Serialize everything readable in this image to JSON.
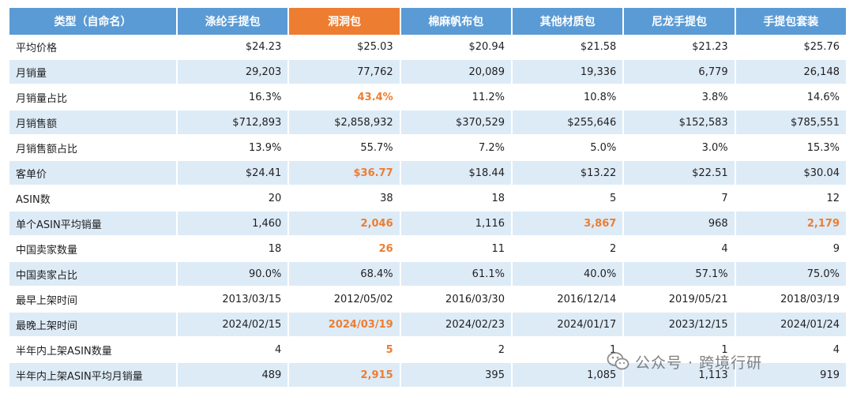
{
  "table": {
    "headers": [
      "类型（自命名）",
      "涤纶手提包",
      "洞洞包",
      "棉麻帆布包",
      "其他材质包",
      "尼龙手提包",
      "手提包套装"
    ],
    "highlight_header_index": 2,
    "accent_color": "#ed7d31",
    "header_color": "#5b9bd5",
    "stripe_color": "#ddebf7",
    "rows": [
      {
        "label": "平均价格",
        "cells": [
          {
            "v": "$24.23"
          },
          {
            "v": "$25.03"
          },
          {
            "v": "$20.94"
          },
          {
            "v": "$21.58"
          },
          {
            "v": "$21.23"
          },
          {
            "v": "$25.76"
          }
        ]
      },
      {
        "label": "月销量",
        "cells": [
          {
            "v": "29,203"
          },
          {
            "v": "77,762"
          },
          {
            "v": "20,089"
          },
          {
            "v": "19,336"
          },
          {
            "v": "6,779"
          },
          {
            "v": "26,148"
          }
        ]
      },
      {
        "label": "月销量占比",
        "cells": [
          {
            "v": "16.3%"
          },
          {
            "v": "43.4%",
            "hl": true
          },
          {
            "v": "11.2%"
          },
          {
            "v": "10.8%"
          },
          {
            "v": "3.8%"
          },
          {
            "v": "14.6%"
          }
        ]
      },
      {
        "label": "月销售额",
        "cells": [
          {
            "v": "$712,893"
          },
          {
            "v": "$2,858,932"
          },
          {
            "v": "$370,529"
          },
          {
            "v": "$255,646"
          },
          {
            "v": "$152,583"
          },
          {
            "v": "$785,551"
          }
        ]
      },
      {
        "label": "月销售额占比",
        "cells": [
          {
            "v": "13.9%"
          },
          {
            "v": "55.7%"
          },
          {
            "v": "7.2%"
          },
          {
            "v": "5.0%"
          },
          {
            "v": "3.0%"
          },
          {
            "v": "15.3%"
          }
        ]
      },
      {
        "label": "客单价",
        "cells": [
          {
            "v": "$24.41"
          },
          {
            "v": "$36.77",
            "hl": true
          },
          {
            "v": "$18.44"
          },
          {
            "v": "$13.22"
          },
          {
            "v": "$22.51"
          },
          {
            "v": "$30.04"
          }
        ]
      },
      {
        "label": "ASIN数",
        "cells": [
          {
            "v": "20"
          },
          {
            "v": "38"
          },
          {
            "v": "18"
          },
          {
            "v": "5"
          },
          {
            "v": "7"
          },
          {
            "v": "12"
          }
        ]
      },
      {
        "label": "单个ASIN平均销量",
        "cells": [
          {
            "v": "1,460"
          },
          {
            "v": "2,046",
            "hl": true
          },
          {
            "v": "1,116"
          },
          {
            "v": "3,867",
            "hl": true
          },
          {
            "v": "968"
          },
          {
            "v": "2,179",
            "hl": true
          }
        ]
      },
      {
        "label": "中国卖家数量",
        "cells": [
          {
            "v": "18"
          },
          {
            "v": "26",
            "hl": true
          },
          {
            "v": "11"
          },
          {
            "v": "2"
          },
          {
            "v": "4"
          },
          {
            "v": "9"
          }
        ]
      },
      {
        "label": "中国卖家占比",
        "cells": [
          {
            "v": "90.0%"
          },
          {
            "v": "68.4%"
          },
          {
            "v": "61.1%"
          },
          {
            "v": "40.0%"
          },
          {
            "v": "57.1%"
          },
          {
            "v": "75.0%"
          }
        ]
      },
      {
        "label": "最早上架时间",
        "cells": [
          {
            "v": "2013/03/15"
          },
          {
            "v": "2012/05/02"
          },
          {
            "v": "2016/03/30"
          },
          {
            "v": "2016/12/14"
          },
          {
            "v": "2019/05/21"
          },
          {
            "v": "2018/03/19"
          }
        ]
      },
      {
        "label": "最晚上架时间",
        "cells": [
          {
            "v": "2024/02/15"
          },
          {
            "v": "2024/03/19",
            "hl": true
          },
          {
            "v": "2024/02/23"
          },
          {
            "v": "2024/01/17"
          },
          {
            "v": "2023/12/15"
          },
          {
            "v": "2024/01/24"
          }
        ]
      },
      {
        "label": "半年内上架ASIN数量",
        "cells": [
          {
            "v": "4"
          },
          {
            "v": "5",
            "hl": true
          },
          {
            "v": "2"
          },
          {
            "v": "1"
          },
          {
            "v": "1"
          },
          {
            "v": "4"
          }
        ]
      },
      {
        "label": "半年内上架ASIN平均月销量",
        "cells": [
          {
            "v": "489"
          },
          {
            "v": "2,915",
            "hl": true
          },
          {
            "v": "395"
          },
          {
            "v": "1,085"
          },
          {
            "v": "1,113"
          },
          {
            "v": "919"
          }
        ]
      }
    ]
  },
  "watermark": {
    "text": "公众号 · 跨境行研",
    "icon": "wechat-icon"
  }
}
